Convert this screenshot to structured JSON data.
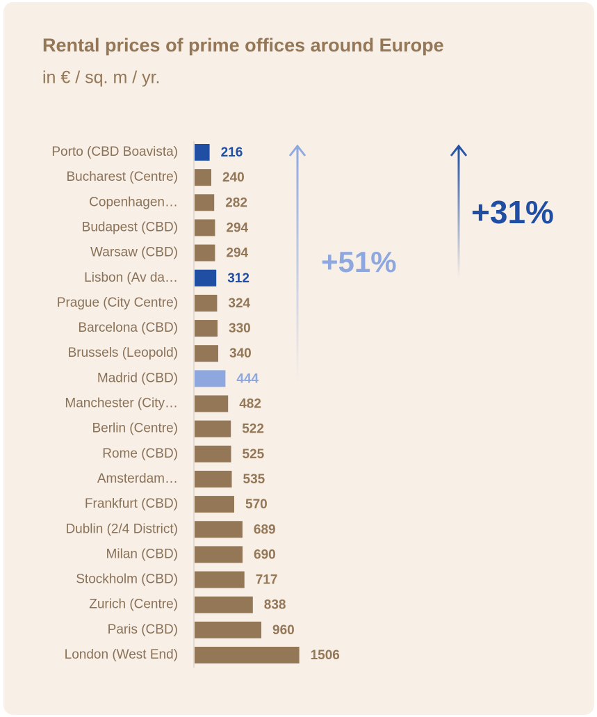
{
  "chart_data": {
    "type": "barh",
    "title": "Rental prices of prime offices around Europe",
    "subtitle": "in € / sq. m / yr.",
    "categories": [
      "Porto (CBD Boavista)",
      "Bucharest (Centre)",
      "Copenhagen…",
      "Budapest (CBD)",
      "Warsaw (CBD)",
      "Lisbon (Av da…",
      "Prague (City Centre)",
      "Barcelona (CBD)",
      "Brussels (Leopold)",
      "Madrid (CBD)",
      "Manchester (City…",
      "Berlin (Centre)",
      "Rome (CBD)",
      "Amsterdam…",
      "Frankfurt (CBD)",
      "Dublin (2/4 District)",
      "Milan (CBD)",
      "Stockholm (CBD)",
      "Zurich (Centre)",
      "Paris (CBD)",
      "London (West End)"
    ],
    "values": [
      216,
      240,
      282,
      294,
      294,
      312,
      324,
      330,
      340,
      444,
      482,
      522,
      525,
      535,
      570,
      689,
      690,
      717,
      838,
      960,
      1506
    ],
    "colors": [
      "#1f4ea3",
      "#937757",
      "#937757",
      "#937757",
      "#937757",
      "#1f4ea3",
      "#937757",
      "#937757",
      "#937757",
      "#8ea8df",
      "#937757",
      "#937757",
      "#937757",
      "#937757",
      "#937757",
      "#937757",
      "#937757",
      "#937757",
      "#937757",
      "#937757",
      "#937757"
    ],
    "xlim": [
      0,
      5500
    ],
    "annotations": [
      {
        "text": "+51%",
        "color": "#8ea8df"
      },
      {
        "text": "+31%",
        "color": "#1f4ea3"
      }
    ]
  }
}
